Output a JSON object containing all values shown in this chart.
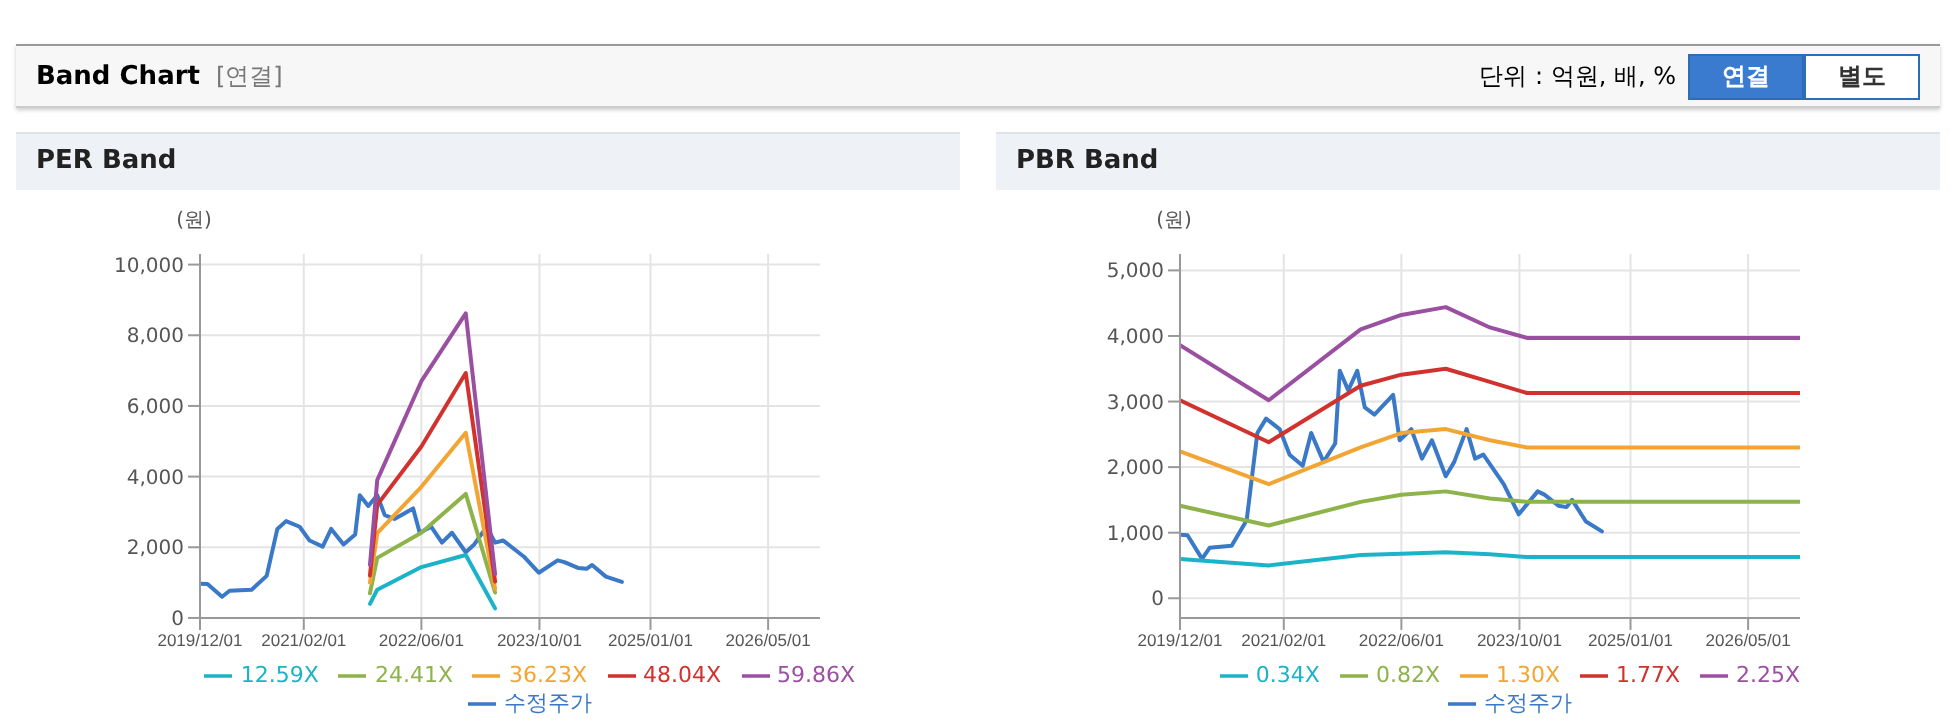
{
  "chart_data": [
    {
      "type": "line",
      "title": "PER Band",
      "ylabel": "(원)",
      "annotations": [
        "Band Chart",
        "[연결]",
        "단위 : 억원, 배, %",
        "연결",
        "별도"
      ],
      "xlim": [
        "2019-12-01",
        "2026-12-01"
      ],
      "xticks": [
        {
          "value": "2019-12-01",
          "label": "2019/12/01"
        },
        {
          "value": "2021-02-01",
          "label": "2021/02/01"
        },
        {
          "value": "2022-06-01",
          "label": "2022/06/01"
        },
        {
          "value": "2023-10-01",
          "label": "2023/10/01"
        },
        {
          "value": "2025-01-01",
          "label": "2025/01/01"
        },
        {
          "value": "2026-05-01",
          "label": "2026/05/01"
        }
      ],
      "ylim": [
        0,
        10300
      ],
      "yticks": [
        {
          "value": 0,
          "label": "0"
        },
        {
          "value": 2000,
          "label": "2,000"
        },
        {
          "value": 4000,
          "label": "4,000"
        },
        {
          "value": 6000,
          "label": "6,000"
        },
        {
          "value": 8000,
          "label": "8,000"
        },
        {
          "value": 10000,
          "label": "10,000"
        }
      ],
      "grid": true,
      "legend": "bottom",
      "marker": "none",
      "line_style": "solid",
      "series": [
        {
          "name": "수정주가",
          "color": "#3a78c8",
          "x": [
            "2019-12-01",
            "2020-01-01",
            "2020-03-01",
            "2020-04-01",
            "2020-07-01",
            "2020-09-01",
            "2020-10-15",
            "2020-11-20",
            "2021-01-15",
            "2021-02-25",
            "2021-04-20",
            "2021-05-25",
            "2021-07-15",
            "2021-09-01",
            "2021-09-20",
            "2021-10-25",
            "2021-12-01",
            "2022-01-01",
            "2022-02-10",
            "2022-04-28",
            "2022-05-25",
            "2022-07-12",
            "2022-08-25",
            "2022-10-05",
            "2022-12-01",
            "2023-01-05",
            "2023-02-25",
            "2023-04-01",
            "2023-05-05",
            "2023-07-28",
            "2023-09-28",
            "2023-12-15",
            "2024-01-12",
            "2024-03-10",
            "2024-04-12",
            "2024-05-05",
            "2024-07-01",
            "2024-09-05"
          ],
          "values": [
            970,
            960,
            600,
            770,
            800,
            1190,
            2520,
            2740,
            2580,
            2190,
            2020,
            2520,
            2080,
            2360,
            3470,
            3170,
            3470,
            2910,
            2800,
            3100,
            2410,
            2580,
            2130,
            2410,
            1860,
            2080,
            2580,
            2130,
            2190,
            1740,
            1280,
            1630,
            1580,
            1410,
            1390,
            1500,
            1170,
            1020
          ]
        },
        {
          "name": "12.59X",
          "color": "#1bb3c8",
          "x": [
            "2021-11-01",
            "2021-12-01",
            "2022-06-01",
            "2022-12-01",
            "2023-04-01"
          ],
          "values": [
            400,
            800,
            1440,
            1780,
            270
          ]
        },
        {
          "name": "24.41X",
          "color": "#8db34a",
          "x": [
            "2021-11-01",
            "2021-12-01",
            "2022-06-01",
            "2022-12-01",
            "2023-04-01"
          ],
          "values": [
            700,
            1700,
            2410,
            3510,
            720
          ]
        },
        {
          "name": "36.23X",
          "color": "#f3a533",
          "x": [
            "2021-11-01",
            "2021-12-01",
            "2022-06-01",
            "2022-12-01",
            "2023-04-01"
          ],
          "values": [
            1000,
            2400,
            3710,
            5240,
            830
          ]
        },
        {
          "name": "48.04X",
          "color": "#d2322d",
          "x": [
            "2021-11-01",
            "2021-12-01",
            "2022-06-01",
            "2022-12-01",
            "2023-04-01"
          ],
          "values": [
            1200,
            3200,
            4850,
            6930,
            1030
          ]
        },
        {
          "name": "59.86X",
          "color": "#9b4fa0",
          "x": [
            "2021-11-01",
            "2021-12-01",
            "2022-06-01",
            "2022-12-01",
            "2023-04-01"
          ],
          "values": [
            1500,
            3900,
            6700,
            8620,
            1240
          ]
        }
      ]
    },
    {
      "type": "line",
      "title": "PBR Band",
      "ylabel": "(원)",
      "xlim": [
        "2019-12-01",
        "2026-12-01"
      ],
      "xticks": [
        {
          "value": "2019-12-01",
          "label": "2019/12/01"
        },
        {
          "value": "2021-02-01",
          "label": "2021/02/01"
        },
        {
          "value": "2022-06-01",
          "label": "2022/06/01"
        },
        {
          "value": "2023-10-01",
          "label": "2023/10/01"
        },
        {
          "value": "2025-01-01",
          "label": "2025/01/01"
        },
        {
          "value": "2026-05-01",
          "label": "2026/05/01"
        }
      ],
      "ylim": [
        -300,
        5250
      ],
      "yticks": [
        {
          "value": 0,
          "label": "0"
        },
        {
          "value": 1000,
          "label": "1,000"
        },
        {
          "value": 2000,
          "label": "2,000"
        },
        {
          "value": 3000,
          "label": "3,000"
        },
        {
          "value": 4000,
          "label": "4,000"
        },
        {
          "value": 5000,
          "label": "5,000"
        }
      ],
      "grid": true,
      "legend": "bottom",
      "marker": "none",
      "line_style": "solid",
      "series": [
        {
          "name": "수정주가",
          "color": "#3a78c8",
          "x": [
            "2019-12-01",
            "2020-01-01",
            "2020-03-01",
            "2020-04-01",
            "2020-07-01",
            "2020-09-01",
            "2020-10-15",
            "2020-11-20",
            "2021-01-15",
            "2021-02-25",
            "2021-04-20",
            "2021-05-25",
            "2021-07-15",
            "2021-09-01",
            "2021-09-20",
            "2021-10-25",
            "2021-12-01",
            "2022-01-01",
            "2022-02-10",
            "2022-04-28",
            "2022-05-25",
            "2022-07-12",
            "2022-08-25",
            "2022-10-05",
            "2022-12-01",
            "2023-01-05",
            "2023-02-25",
            "2023-04-01",
            "2023-05-05",
            "2023-07-28",
            "2023-09-28",
            "2023-12-15",
            "2024-01-12",
            "2024-03-10",
            "2024-04-12",
            "2024-05-05",
            "2024-07-01",
            "2024-09-05"
          ],
          "values": [
            970,
            960,
            600,
            770,
            800,
            1190,
            2520,
            2740,
            2580,
            2190,
            2020,
            2520,
            2080,
            2360,
            3470,
            3170,
            3470,
            2910,
            2800,
            3100,
            2410,
            2580,
            2130,
            2410,
            1860,
            2080,
            2580,
            2130,
            2190,
            1740,
            1280,
            1630,
            1580,
            1410,
            1390,
            1500,
            1170,
            1020
          ]
        },
        {
          "name": "0.34X",
          "color": "#1bb3c8",
          "x": [
            "2019-12-01",
            "2020-12-01",
            "2021-12-15",
            "2022-06-01",
            "2022-12-01",
            "2023-06-01",
            "2023-11-01",
            "2026-12-01"
          ],
          "values": [
            600,
            500,
            660,
            680,
            700,
            670,
            630,
            630
          ]
        },
        {
          "name": "0.82X",
          "color": "#8db34a",
          "x": [
            "2019-12-01",
            "2020-12-01",
            "2021-12-15",
            "2022-06-01",
            "2022-12-01",
            "2023-06-01",
            "2023-11-01",
            "2026-12-01"
          ],
          "values": [
            1410,
            1110,
            1470,
            1580,
            1630,
            1520,
            1470,
            1470
          ]
        },
        {
          "name": "1.30X",
          "color": "#f3a533",
          "x": [
            "2019-12-01",
            "2020-12-01",
            "2021-12-15",
            "2022-06-01",
            "2022-12-01",
            "2023-06-01",
            "2023-11-01",
            "2026-12-01"
          ],
          "values": [
            2240,
            1740,
            2300,
            2520,
            2580,
            2410,
            2300,
            2300
          ]
        },
        {
          "name": "1.77X",
          "color": "#d2322d",
          "x": [
            "2019-12-01",
            "2020-12-01",
            "2021-12-15",
            "2022-06-01",
            "2022-12-01",
            "2023-06-01",
            "2023-11-01",
            "2026-12-01"
          ],
          "values": [
            3020,
            2380,
            3240,
            3410,
            3500,
            3300,
            3130,
            3130
          ]
        },
        {
          "name": "2.25X",
          "color": "#9b4fa0",
          "x": [
            "2019-12-01",
            "2020-12-01",
            "2021-12-15",
            "2022-06-01",
            "2022-12-01",
            "2023-06-01",
            "2023-11-01",
            "2026-12-01"
          ],
          "values": [
            3860,
            3020,
            4100,
            4320,
            4440,
            4130,
            3970,
            3970
          ]
        }
      ]
    }
  ]
}
